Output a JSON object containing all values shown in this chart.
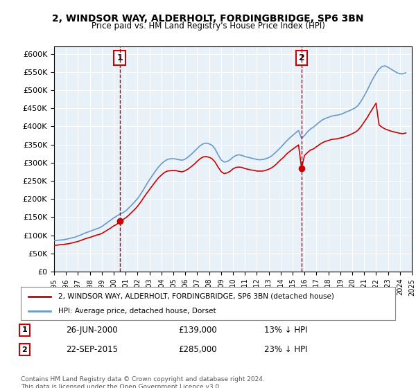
{
  "title": "2, WINDSOR WAY, ALDERHOLT, FORDINGBRIDGE, SP6 3BN",
  "subtitle": "Price paid vs. HM Land Registry's House Price Index (HPI)",
  "x_start_year": 1995,
  "x_end_year": 2025,
  "ylim": [
    0,
    620000
  ],
  "yticks": [
    0,
    50000,
    100000,
    150000,
    200000,
    250000,
    300000,
    350000,
    400000,
    450000,
    500000,
    550000,
    600000
  ],
  "background_color": "#e8f0f8",
  "plot_bg_color": "#e8f0f8",
  "red_line_color": "#cc0000",
  "blue_line_color": "#6699cc",
  "grid_color": "#ffffff",
  "marker1_year": 2000.5,
  "marker1_value": 139000,
  "marker1_label": "1",
  "marker2_year": 2015.75,
  "marker2_value": 285000,
  "marker2_label": "2",
  "legend_label_red": "2, WINDSOR WAY, ALDERHOLT, FORDINGBRIDGE, SP6 3BN (detached house)",
  "legend_label_blue": "HPI: Average price, detached house, Dorset",
  "annotation1_date": "26-JUN-2000",
  "annotation1_price": "£139,000",
  "annotation1_hpi": "13% ↓ HPI",
  "annotation2_date": "22-SEP-2015",
  "annotation2_price": "£285,000",
  "annotation2_hpi": "23% ↓ HPI",
  "footer": "Contains HM Land Registry data © Crown copyright and database right 2024.\nThis data is licensed under the Open Government Licence v3.0.",
  "hpi_data_years": [
    1995.0,
    1995.25,
    1995.5,
    1995.75,
    1996.0,
    1996.25,
    1996.5,
    1996.75,
    1997.0,
    1997.25,
    1997.5,
    1997.75,
    1998.0,
    1998.25,
    1998.5,
    1998.75,
    1999.0,
    1999.25,
    1999.5,
    1999.75,
    2000.0,
    2000.25,
    2000.5,
    2000.75,
    2001.0,
    2001.25,
    2001.5,
    2001.75,
    2002.0,
    2002.25,
    2002.5,
    2002.75,
    2003.0,
    2003.25,
    2003.5,
    2003.75,
    2004.0,
    2004.25,
    2004.5,
    2004.75,
    2005.0,
    2005.25,
    2005.5,
    2005.75,
    2006.0,
    2006.25,
    2006.5,
    2006.75,
    2007.0,
    2007.25,
    2007.5,
    2007.75,
    2008.0,
    2008.25,
    2008.5,
    2008.75,
    2009.0,
    2009.25,
    2009.5,
    2009.75,
    2010.0,
    2010.25,
    2010.5,
    2010.75,
    2011.0,
    2011.25,
    2011.5,
    2011.75,
    2012.0,
    2012.25,
    2012.5,
    2012.75,
    2013.0,
    2013.25,
    2013.5,
    2013.75,
    2014.0,
    2014.25,
    2014.5,
    2014.75,
    2015.0,
    2015.25,
    2015.5,
    2015.75,
    2016.0,
    2016.25,
    2016.5,
    2016.75,
    2017.0,
    2017.25,
    2017.5,
    2017.75,
    2018.0,
    2018.25,
    2018.5,
    2018.75,
    2019.0,
    2019.25,
    2019.5,
    2019.75,
    2020.0,
    2020.25,
    2020.5,
    2020.75,
    2021.0,
    2021.25,
    2021.5,
    2021.75,
    2022.0,
    2022.25,
    2022.5,
    2022.75,
    2023.0,
    2023.25,
    2023.5,
    2023.75,
    2024.0,
    2024.25,
    2024.5
  ],
  "hpi_data_values": [
    85000,
    86000,
    87000,
    87500,
    89000,
    91000,
    93000,
    95000,
    98000,
    101000,
    105000,
    108000,
    111000,
    114000,
    117000,
    120000,
    124000,
    130000,
    136000,
    142000,
    148000,
    153000,
    158000,
    162000,
    167000,
    175000,
    183000,
    192000,
    201000,
    213000,
    226000,
    240000,
    253000,
    265000,
    277000,
    288000,
    297000,
    304000,
    309000,
    311000,
    311000,
    310000,
    308000,
    307000,
    310000,
    316000,
    323000,
    331000,
    339000,
    347000,
    352000,
    354000,
    352000,
    348000,
    338000,
    322000,
    308000,
    302000,
    303000,
    308000,
    315000,
    320000,
    322000,
    320000,
    317000,
    315000,
    313000,
    311000,
    309000,
    308000,
    309000,
    311000,
    314000,
    319000,
    326000,
    334000,
    342000,
    351000,
    360000,
    368000,
    375000,
    382000,
    389000,
    367000,
    375000,
    385000,
    393000,
    398000,
    405000,
    412000,
    418000,
    422000,
    425000,
    428000,
    430000,
    431000,
    433000,
    436000,
    440000,
    443000,
    447000,
    451000,
    458000,
    470000,
    484000,
    499000,
    516000,
    532000,
    546000,
    558000,
    565000,
    567000,
    563000,
    558000,
    553000,
    548000,
    545000,
    545000,
    548000
  ],
  "red_data_years": [
    1995.0,
    1995.25,
    1995.5,
    1995.75,
    1996.0,
    1996.25,
    1996.5,
    1996.75,
    1997.0,
    1997.25,
    1997.5,
    1997.75,
    1998.0,
    1998.25,
    1998.5,
    1998.75,
    1999.0,
    1999.25,
    1999.5,
    1999.75,
    2000.0,
    2000.25,
    2000.5,
    2000.75,
    2001.0,
    2001.25,
    2001.5,
    2001.75,
    2002.0,
    2002.25,
    2002.5,
    2002.75,
    2003.0,
    2003.25,
    2003.5,
    2003.75,
    2004.0,
    2004.25,
    2004.5,
    2004.75,
    2005.0,
    2005.25,
    2005.5,
    2005.75,
    2006.0,
    2006.25,
    2006.5,
    2006.75,
    2007.0,
    2007.25,
    2007.5,
    2007.75,
    2008.0,
    2008.25,
    2008.5,
    2008.75,
    2009.0,
    2009.25,
    2009.5,
    2009.75,
    2010.0,
    2010.25,
    2010.5,
    2010.75,
    2011.0,
    2011.25,
    2011.5,
    2011.75,
    2012.0,
    2012.25,
    2012.5,
    2012.75,
    2013.0,
    2013.25,
    2013.5,
    2013.75,
    2014.0,
    2014.25,
    2014.5,
    2014.75,
    2015.0,
    2015.25,
    2015.5,
    2015.75,
    2016.0,
    2016.25,
    2016.5,
    2016.75,
    2017.0,
    2017.25,
    2017.5,
    2017.75,
    2018.0,
    2018.25,
    2018.5,
    2018.75,
    2019.0,
    2019.25,
    2019.5,
    2019.75,
    2020.0,
    2020.25,
    2020.5,
    2020.75,
    2021.0,
    2021.25,
    2021.5,
    2021.75,
    2022.0,
    2022.25,
    2022.5,
    2022.75,
    2023.0,
    2023.25,
    2023.5,
    2023.75,
    2024.0,
    2024.25,
    2024.5
  ],
  "red_data_values": [
    72000,
    73000,
    74000,
    74500,
    76000,
    77000,
    79000,
    81000,
    83000,
    86000,
    89000,
    92000,
    94000,
    97000,
    100000,
    102000,
    105000,
    110000,
    115000,
    120000,
    126000,
    130000,
    139000,
    143000,
    148000,
    155000,
    163000,
    171000,
    180000,
    191000,
    203000,
    215000,
    226000,
    237000,
    248000,
    258000,
    266000,
    273000,
    277000,
    278000,
    279000,
    278000,
    276000,
    275000,
    278000,
    283000,
    289000,
    296000,
    304000,
    311000,
    316000,
    317000,
    315000,
    311000,
    302000,
    288000,
    276000,
    270000,
    272000,
    276000,
    283000,
    287000,
    288000,
    287000,
    284000,
    282000,
    280000,
    279000,
    277000,
    277000,
    277000,
    279000,
    282000,
    286000,
    292000,
    300000,
    308000,
    315000,
    324000,
    331000,
    337000,
    343000,
    349000,
    285000,
    320000,
    328000,
    335000,
    338000,
    344000,
    350000,
    355000,
    359000,
    361000,
    364000,
    365000,
    366000,
    368000,
    370000,
    373000,
    376000,
    380000,
    384000,
    390000,
    400000,
    412000,
    424000,
    438000,
    451000,
    464000,
    404000,
    398000,
    393000,
    390000,
    387000,
    385000,
    383000,
    381000,
    380000,
    382000
  ]
}
